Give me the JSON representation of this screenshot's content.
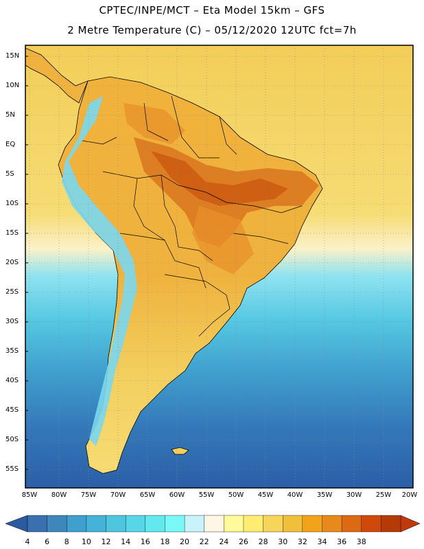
{
  "title": {
    "line1": "CPTEC/INPE/MCT –  Eta Model 15km – GFS",
    "line2": "2 Metre Temperature (C) – 05/12/2020 12UTC fct=7h"
  },
  "map": {
    "latitude_labels": [
      "15N",
      "10N",
      "5N",
      "EQ",
      "5S",
      "10S",
      "15S",
      "20S",
      "25S",
      "30S",
      "35S",
      "40S",
      "45S",
      "50S",
      "55S"
    ],
    "longitude_labels": [
      "85W",
      "80W",
      "75W",
      "70W",
      "65W",
      "60W",
      "55W",
      "50W",
      "45W",
      "40W",
      "35W",
      "30W",
      "25W",
      "20W"
    ]
  },
  "colorbar": {
    "labels": [
      "4",
      "6",
      "8",
      "10",
      "12",
      "14",
      "16",
      "18",
      "20",
      "22",
      "24",
      "26",
      "28",
      "30",
      "32",
      "34",
      "36",
      "38"
    ],
    "colors": [
      "#3a6fb0",
      "#3d87bd",
      "#3f9fce",
      "#45b2d9",
      "#4fc6e0",
      "#56d6e8",
      "#62e8ef",
      "#7af7f7",
      "#c9f3fb",
      "#fff6e6",
      "#fffa9a",
      "#ffec70",
      "#f7d55a",
      "#f0c03a",
      "#f2a319",
      "#e8891c",
      "#dd6a13",
      "#cf4a0a",
      "#b53a08"
    ],
    "under_color": "#2b5aa0",
    "over_color": "#c0390a"
  },
  "colors": {
    "ocean_deep": "#2f64a8",
    "ocean_mid": "#3d90c6",
    "ocean_light": "#52c4e0",
    "ocean_cyan": "#73e6f0",
    "tropic_sea": "#f1cb55",
    "land_warm": "#f0b440",
    "land_hot": "#d76a18",
    "andes": "#7fdaf0"
  }
}
